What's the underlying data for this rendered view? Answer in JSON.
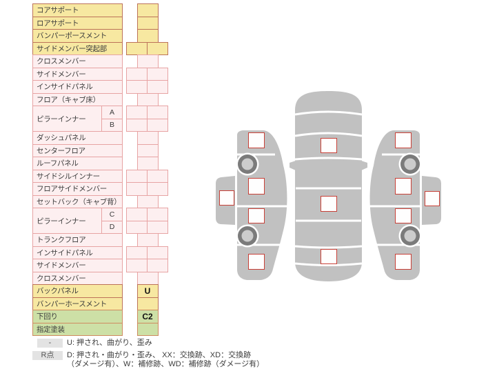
{
  "parts_table": {
    "rows": [
      {
        "label": "コアサポート",
        "color": "yellow",
        "cells": "single",
        "value": ""
      },
      {
        "label": "ロアサポート",
        "color": "yellow",
        "cells": "single",
        "value": ""
      },
      {
        "label": "バンパーポースメント",
        "color": "yellow",
        "cells": "single",
        "value": ""
      },
      {
        "label": "サイドメンバー突起部",
        "color": "yellow",
        "cells": "double",
        "value": ""
      },
      {
        "label": "クロスメンバー",
        "color": "pink",
        "cells": "single",
        "value": ""
      },
      {
        "label": "サイドメンバー",
        "color": "pink",
        "cells": "double",
        "value": ""
      },
      {
        "label": "インサイドパネル",
        "color": "pink",
        "cells": "double",
        "value": ""
      },
      {
        "label": "フロア（キャブ床）",
        "color": "pink",
        "cells": "single",
        "value": ""
      },
      {
        "label": "ピラーインナー",
        "sub": "A",
        "color": "pink",
        "cells": "double",
        "group": "start",
        "value": ""
      },
      {
        "label": "",
        "sub": "B",
        "color": "pink",
        "cells": "double",
        "group": "end",
        "value": ""
      },
      {
        "label": "ダッシュパネル",
        "color": "pink",
        "cells": "single",
        "value": ""
      },
      {
        "label": "センターフロア",
        "color": "pink",
        "cells": "single",
        "value": ""
      },
      {
        "label": "ルーフパネル",
        "color": "pink",
        "cells": "single",
        "value": ""
      },
      {
        "label": "サイドシルインナー",
        "color": "pink",
        "cells": "double",
        "value": ""
      },
      {
        "label": "フロアサイドメンバー",
        "color": "pink",
        "cells": "double",
        "value": ""
      },
      {
        "label": "セットバック（キャブ背）",
        "color": "pink",
        "cells": "single",
        "value": ""
      },
      {
        "label": "ピラーインナー",
        "sub": "C",
        "color": "pink",
        "cells": "double",
        "group": "start",
        "value": ""
      },
      {
        "label": "",
        "sub": "D",
        "color": "pink",
        "cells": "double",
        "group": "end",
        "value": ""
      },
      {
        "label": "トランクフロア",
        "color": "pink",
        "cells": "single",
        "value": ""
      },
      {
        "label": "インサイドパネル",
        "color": "pink",
        "cells": "double",
        "value": ""
      },
      {
        "label": "サイドメンバー",
        "color": "pink",
        "cells": "double",
        "value": ""
      },
      {
        "label": "クロスメンバー",
        "color": "pink",
        "cells": "single",
        "value": ""
      },
      {
        "label": "バックパネル",
        "color": "yellow",
        "cells": "single",
        "value": "U"
      },
      {
        "label": "バンパーホースメント",
        "color": "yellow",
        "cells": "single",
        "value": ""
      },
      {
        "label": "下回り",
        "color": "green",
        "cells": "single",
        "value": "C2"
      },
      {
        "label": "指定塗装",
        "color": "green",
        "cells": "single",
        "value": ""
      }
    ]
  },
  "diagram": {
    "views": [
      "left-side-view",
      "top-view",
      "right-side-view"
    ],
    "checkboxes": [
      {
        "id": "left-strip",
        "value": ""
      },
      {
        "id": "left-1",
        "value": ""
      },
      {
        "id": "left-2",
        "value": ""
      },
      {
        "id": "left-3",
        "value": ""
      },
      {
        "id": "left-4",
        "value": ""
      },
      {
        "id": "top-1",
        "value": ""
      },
      {
        "id": "top-2",
        "value": ""
      },
      {
        "id": "top-3",
        "value": ""
      },
      {
        "id": "right-1",
        "value": ""
      },
      {
        "id": "right-2",
        "value": ""
      },
      {
        "id": "right-3",
        "value": ""
      },
      {
        "id": "right-4",
        "value": ""
      },
      {
        "id": "right-strip",
        "value": ""
      }
    ]
  },
  "legend": {
    "items": [
      {
        "badge": "-",
        "lines": [
          "U: 押され、曲がり、歪み"
        ]
      },
      {
        "badge": "R点",
        "lines": [
          "D: 押され・曲がり・歪み、 XX：交換跡、XD：交換跡",
          "（ダメージ有）、W：補修跡、WD：補修跡（ダメージ有）"
        ]
      }
    ]
  },
  "colors": {
    "yellow_fill": "#f7e8a1",
    "yellow_border": "#bc7259",
    "pink_fill": "#fdeff0",
    "pink_border": "#e7a3a3",
    "green_fill": "#cde0a6",
    "green_border": "#cf8a60",
    "car_gray": "#c1c1c1",
    "checkbox_border": "#c73f36",
    "badge_bg": "#e3e3e3",
    "wheel_tire": "#7b7b7b",
    "wheel_hub": "#cccccc"
  }
}
